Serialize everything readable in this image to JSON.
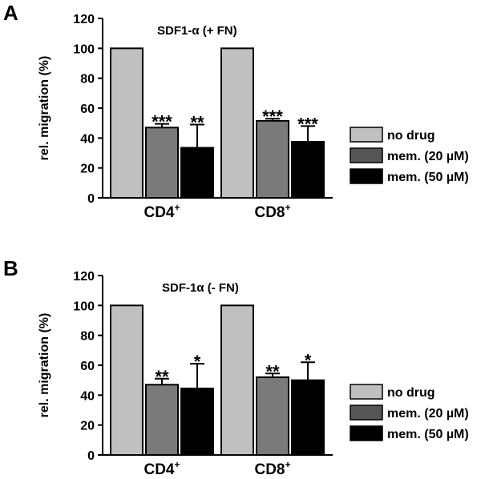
{
  "chart_data": [
    {
      "panel": "A",
      "type": "bar",
      "title": "SDF1-α (+ FN)",
      "ylabel": "rel. migration (%)",
      "xlabel": "",
      "ylim": [
        0,
        120
      ],
      "yticks": [
        0,
        20,
        40,
        60,
        80,
        100,
        120
      ],
      "groups": [
        {
          "label": "CD4",
          "sup": "+"
        },
        {
          "label": "CD8",
          "sup": "+"
        }
      ],
      "series": [
        {
          "name": "no drug",
          "color": "#c0c0c0",
          "values": [
            100,
            100
          ],
          "errors": [
            0,
            0
          ],
          "significance": [
            "",
            ""
          ]
        },
        {
          "name": "mem. (20 µM)",
          "color": "#7a7a7a",
          "values": [
            47,
            51.5
          ],
          "errors": [
            2.5,
            1.5
          ],
          "significance": [
            "***",
            "***"
          ]
        },
        {
          "name": "mem. (50 µM)",
          "color": "#000000",
          "values": [
            33.5,
            37.5
          ],
          "errors": [
            15.5,
            10.5
          ],
          "significance": [
            "**",
            "***"
          ]
        }
      ],
      "legend": [
        {
          "label": "no drug",
          "color": "#c0c0c0"
        },
        {
          "label": "mem. (20 µM)",
          "color": "#555555"
        },
        {
          "label": "mem. (50 µM)",
          "color": "#000000"
        }
      ]
    },
    {
      "panel": "B",
      "type": "bar",
      "title": "SDF-1α (- FN)",
      "ylabel": "rel. migration (%)",
      "xlabel": "",
      "ylim": [
        0,
        120
      ],
      "yticks": [
        0,
        20,
        40,
        60,
        80,
        100,
        120
      ],
      "groups": [
        {
          "label": "CD4",
          "sup": "+"
        },
        {
          "label": "CD8",
          "sup": "+"
        }
      ],
      "series": [
        {
          "name": "no drug",
          "color": "#c0c0c0",
          "values": [
            100,
            100
          ],
          "errors": [
            0,
            0
          ],
          "significance": [
            "",
            ""
          ]
        },
        {
          "name": "mem. (20 µM)",
          "color": "#7a7a7a",
          "values": [
            47,
            52
          ],
          "errors": [
            4,
            2.5
          ],
          "significance": [
            "**",
            "**"
          ]
        },
        {
          "name": "mem. (50 µM)",
          "color": "#000000",
          "values": [
            44.5,
            50
          ],
          "errors": [
            16.5,
            12
          ],
          "significance": [
            "*",
            "*"
          ]
        }
      ],
      "legend": [
        {
          "label": "no drug",
          "color": "#c0c0c0"
        },
        {
          "label": "mem. (20 µM)",
          "color": "#555555"
        },
        {
          "label": "mem. (50 µM)",
          "color": "#000000"
        }
      ]
    }
  ]
}
